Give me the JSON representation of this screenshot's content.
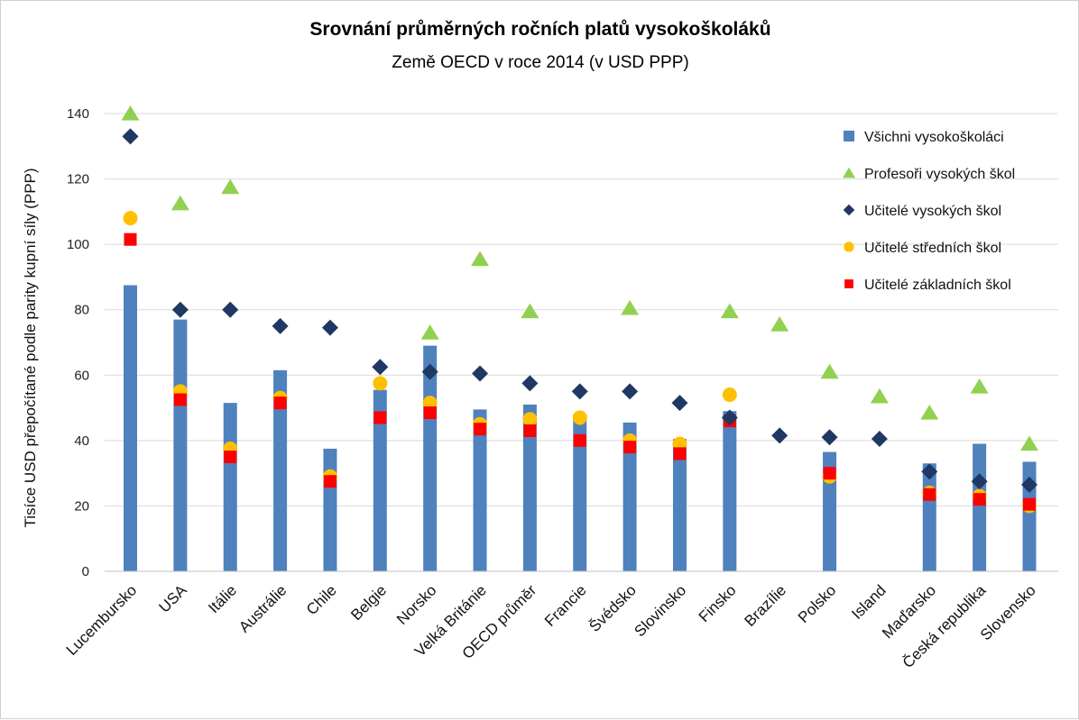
{
  "chart_data": {
    "type": "bar",
    "title": "Srovnání průměrných ročních platů vysokoškoláků",
    "subtitle": "Země OECD v roce 2014 (v USD PPP)",
    "ylabel": "Tisíce USD přepočítané podle parity kupní síly (PPP)",
    "xlabel": "",
    "ylim": [
      0,
      140
    ],
    "yticks": [
      0,
      20,
      40,
      60,
      80,
      100,
      120,
      140
    ],
    "grid": true,
    "legend_position": "top-right",
    "categories": [
      "Lucembursko",
      "USA",
      "Itálie",
      "Austrálie",
      "Chile",
      "Belgie",
      "Norsko",
      "Velká Británie",
      "OECD průměr",
      "Francie",
      "Švédsko",
      "Slovinsko",
      "Finsko",
      "Brazílie",
      "Polsko",
      "Island",
      "Maďarsko",
      "Česká republika",
      "Slovensko"
    ],
    "series": [
      {
        "name": "Všichni vysokoškoláci",
        "type": "bar",
        "marker": "bar",
        "color": "#4f81bd",
        "values": [
          87.5,
          77,
          51.5,
          61.5,
          37.5,
          55.5,
          69,
          49.5,
          51,
          48,
          45.5,
          40.5,
          49,
          null,
          36.5,
          null,
          33,
          39,
          33.5
        ]
      },
      {
        "name": "Profesoři vysokých škol",
        "type": "scatter",
        "marker": "triangle",
        "color": "#92d050",
        "values": [
          140,
          112.5,
          117.5,
          null,
          null,
          null,
          73,
          95.5,
          79.5,
          null,
          80.5,
          null,
          79.5,
          75.5,
          61,
          53.5,
          48.5,
          56.5,
          39
        ]
      },
      {
        "name": "Učitelé vysokých škol",
        "type": "scatter",
        "marker": "diamond",
        "color": "#1f3864",
        "values": [
          133,
          80,
          80,
          75,
          74.5,
          62.5,
          61,
          60.5,
          57.5,
          55,
          55,
          51.5,
          47,
          41.5,
          41,
          40.5,
          30.5,
          27.5,
          26.5
        ]
      },
      {
        "name": "Učitelé středních škol",
        "type": "scatter",
        "marker": "circle",
        "color": "#ffc000",
        "values": [
          108,
          55,
          37.5,
          53,
          29,
          57.5,
          51.5,
          45,
          46.5,
          47,
          40,
          39,
          54,
          null,
          29,
          null,
          24,
          23,
          20
        ]
      },
      {
        "name": "Učitelé základních škol",
        "type": "scatter",
        "marker": "square",
        "color": "#ff0000",
        "values": [
          101.5,
          52.5,
          35,
          51.5,
          27.5,
          47,
          48.5,
          43.5,
          43,
          40,
          38,
          36,
          46,
          null,
          30,
          null,
          23.5,
          22,
          20.5
        ]
      }
    ]
  }
}
